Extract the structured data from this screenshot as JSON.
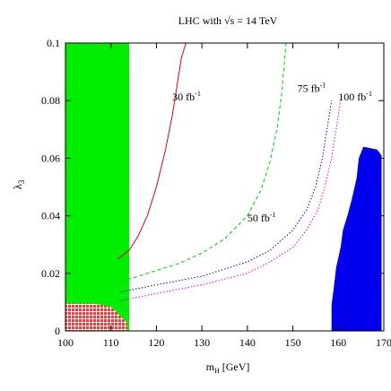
{
  "chart_data": {
    "type": "line",
    "title": "LHC with √s = 14 TeV",
    "xlabel": "m",
    "xlabel_sub": "H",
    "xlabel_unit": " [GeV]",
    "ylabel": "λ",
    "ylabel_sub": "3",
    "xlim": [
      100,
      170
    ],
    "ylim": [
      0,
      0.1
    ],
    "xticks": [
      100,
      110,
      120,
      130,
      140,
      150,
      160,
      170
    ],
    "yticks": [
      0,
      0.02,
      0.04,
      0.06,
      0.08,
      0.1
    ],
    "ytick_labels": [
      "0",
      "0.02",
      "0.04",
      "0.06",
      "0.08",
      "0.1"
    ],
    "grid": false,
    "legend": "none",
    "series": [
      {
        "name": "30 fb",
        "name_sup": "-1",
        "color": "#e00000",
        "dash": "solid",
        "points": [
          [
            111.5,
            0.025
          ],
          [
            114,
            0.028
          ],
          [
            116,
            0.033
          ],
          [
            118,
            0.04
          ],
          [
            120,
            0.05
          ],
          [
            122,
            0.063
          ],
          [
            123.5,
            0.075
          ],
          [
            124.5,
            0.085
          ],
          [
            125.5,
            0.095
          ],
          [
            126.5,
            0.1
          ]
        ]
      },
      {
        "name": "50 fb",
        "name_sup": "-1",
        "color": "#00c800",
        "dash": "dashed",
        "points": [
          [
            111,
            0.0165
          ],
          [
            115,
            0.0185
          ],
          [
            120,
            0.021
          ],
          [
            125,
            0.0235
          ],
          [
            130,
            0.027
          ],
          [
            135,
            0.032
          ],
          [
            140,
            0.04
          ],
          [
            143,
            0.049
          ],
          [
            145,
            0.059
          ],
          [
            146.5,
            0.07
          ],
          [
            147.5,
            0.082
          ],
          [
            148.5,
            0.1
          ]
        ]
      },
      {
        "name": "75 fb",
        "name_sup": "-1",
        "color": "#0000cc",
        "dash": "dotted",
        "points": [
          [
            112,
            0.0135
          ],
          [
            120,
            0.016
          ],
          [
            130,
            0.019
          ],
          [
            140,
            0.024
          ],
          [
            145,
            0.028
          ],
          [
            150,
            0.035
          ],
          [
            153,
            0.042
          ],
          [
            155,
            0.05
          ],
          [
            156.5,
            0.06
          ],
          [
            157.5,
            0.07
          ],
          [
            158.5,
            0.08
          ]
        ]
      },
      {
        "name": "100 fb",
        "name_sup": "-1",
        "color": "#e000e0",
        "dash": "dotted",
        "points": [
          [
            112,
            0.0105
          ],
          [
            120,
            0.013
          ],
          [
            130,
            0.016
          ],
          [
            140,
            0.02
          ],
          [
            145,
            0.024
          ],
          [
            150,
            0.029
          ],
          [
            153,
            0.035
          ],
          [
            155.5,
            0.042
          ],
          [
            157,
            0.05
          ],
          [
            158.5,
            0.06
          ],
          [
            159.5,
            0.07
          ],
          [
            160.5,
            0.08
          ]
        ]
      }
    ],
    "regions": [
      {
        "color": "#00ee00",
        "points": [
          [
            100,
            0
          ],
          [
            114,
            0
          ],
          [
            114,
            0.1
          ],
          [
            100,
            0.1
          ]
        ]
      },
      {
        "color": "#ff3333",
        "points": [
          [
            100,
            0
          ],
          [
            113.5,
            0
          ],
          [
            113.5,
            0.003
          ],
          [
            111.5,
            0.006
          ],
          [
            110,
            0.0085
          ],
          [
            106,
            0.0095
          ],
          [
            100,
            0.0095
          ]
        ]
      },
      {
        "color": "#0000ee",
        "points": [
          [
            158.5,
            0
          ],
          [
            169.5,
            0
          ],
          [
            169.5,
            0.061
          ],
          [
            168.5,
            0.063
          ],
          [
            165.5,
            0.064
          ],
          [
            164.5,
            0.06
          ],
          [
            164,
            0.053
          ],
          [
            163,
            0.046
          ],
          [
            162,
            0.04
          ],
          [
            161,
            0.035
          ],
          [
            160.5,
            0.029
          ],
          [
            159.5,
            0.022
          ],
          [
            159,
            0.015
          ],
          [
            158.5,
            0.009
          ]
        ]
      }
    ],
    "annotations": [
      {
        "series": 0,
        "x": 123.5,
        "y": 0.08
      },
      {
        "series": 1,
        "x": 140,
        "y": 0.038
      },
      {
        "series": 2,
        "x": 151,
        "y": 0.083
      },
      {
        "series": 3,
        "x": 160,
        "y": 0.08
      }
    ]
  }
}
